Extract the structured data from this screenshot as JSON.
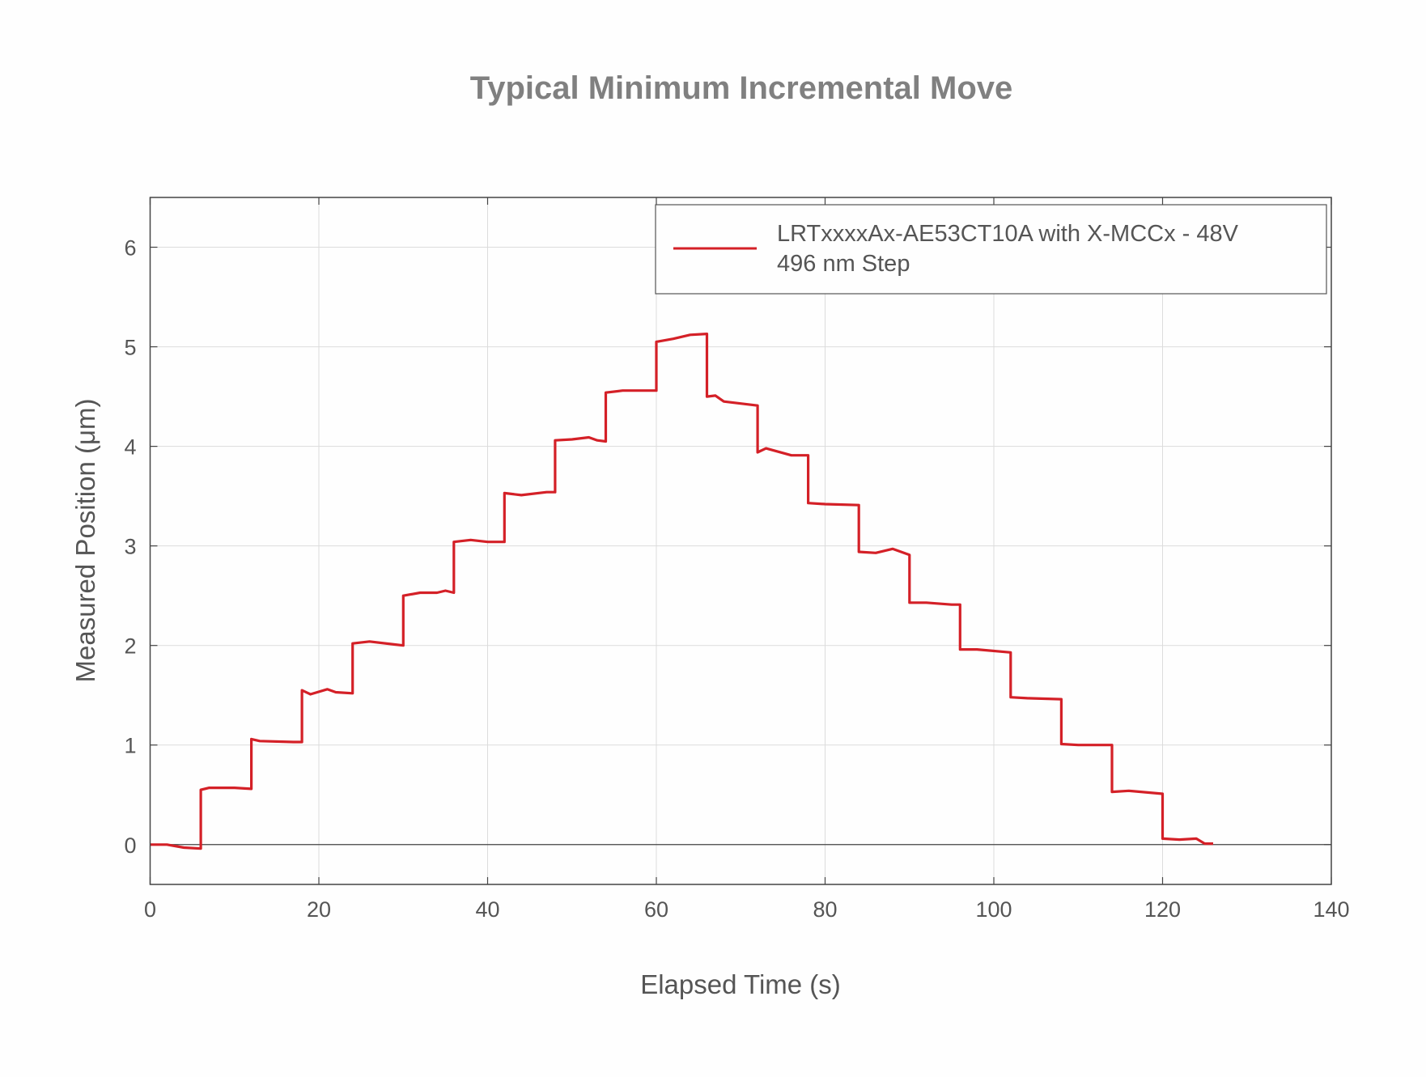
{
  "chart_data": {
    "type": "line",
    "title": "Typical Minimum Incremental Move",
    "xlabel": "Elapsed Time (s)",
    "ylabel": "Measured Position (μm)",
    "xlim": [
      0,
      140
    ],
    "ylim": [
      -0.4,
      6.5
    ],
    "xticks": [
      0,
      20,
      40,
      60,
      80,
      100,
      120,
      140
    ],
    "yticks": [
      0,
      1,
      2,
      3,
      4,
      5,
      6
    ],
    "grid": true,
    "legend_position": "top-right",
    "series": [
      {
        "name": "LRTxxxxAx-AE53CT10A with X-MCCx - 48V",
        "name_line2": "496 nm Step",
        "color": "#d42027",
        "x": [
          0,
          2,
          4,
          6,
          6,
          7,
          10,
          12,
          12,
          13,
          17,
          18,
          18,
          19,
          21,
          22,
          24,
          24,
          26,
          29,
          30,
          30,
          32,
          34,
          35,
          36,
          36,
          38,
          40,
          42,
          42,
          44,
          47,
          48,
          48,
          50,
          52,
          53,
          54,
          54,
          56,
          60,
          60,
          62,
          64,
          66,
          66,
          67,
          68,
          72,
          72,
          73,
          76,
          78,
          78,
          80,
          84,
          84,
          86,
          88,
          90,
          90,
          92,
          95,
          96,
          96,
          98,
          102,
          102,
          104,
          108,
          108,
          110,
          114,
          114,
          116,
          120,
          120,
          122,
          124,
          125,
          126
        ],
        "y": [
          0,
          0,
          -0.03,
          -0.04,
          0.55,
          0.57,
          0.57,
          0.56,
          1.06,
          1.04,
          1.03,
          1.03,
          1.55,
          1.51,
          1.56,
          1.53,
          1.52,
          2.02,
          2.04,
          2.01,
          2.0,
          2.5,
          2.53,
          2.53,
          2.55,
          2.53,
          3.04,
          3.06,
          3.04,
          3.04,
          3.53,
          3.51,
          3.54,
          3.54,
          4.06,
          4.07,
          4.09,
          4.06,
          4.05,
          4.54,
          4.56,
          4.56,
          5.05,
          5.08,
          5.12,
          5.13,
          4.5,
          4.51,
          4.45,
          4.41,
          3.94,
          3.98,
          3.91,
          3.91,
          3.43,
          3.42,
          3.41,
          2.94,
          2.93,
          2.97,
          2.91,
          2.43,
          2.43,
          2.41,
          2.41,
          1.96,
          1.96,
          1.93,
          1.48,
          1.47,
          1.46,
          1.01,
          1.0,
          1.0,
          0.53,
          0.54,
          0.51,
          0.06,
          0.05,
          0.06,
          0.01,
          0.01
        ]
      }
    ]
  }
}
